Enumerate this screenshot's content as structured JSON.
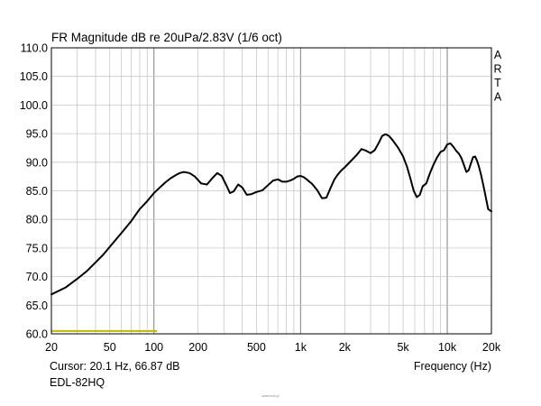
{
  "chart_data": {
    "type": "line",
    "title": "FR Magnitude dB re 20uPa/2.83V (1/6 oct)",
    "xlabel": "Frequency (Hz)",
    "ylabel": "",
    "x_scale": "log",
    "xlim": [
      20,
      20000
    ],
    "ylim": [
      60,
      110
    ],
    "grid": true,
    "colors": {
      "curve": "#000000",
      "marker": "#c8b400",
      "grid": "#c8c8c8"
    },
    "y_ticks": [
      {
        "value": 60,
        "label": "60.0"
      },
      {
        "value": 65,
        "label": "65.0"
      },
      {
        "value": 70,
        "label": "70.0"
      },
      {
        "value": 75,
        "label": "75.0"
      },
      {
        "value": 80,
        "label": "80.0"
      },
      {
        "value": 85,
        "label": "85.0"
      },
      {
        "value": 90,
        "label": "90.0"
      },
      {
        "value": 95,
        "label": "95.0"
      },
      {
        "value": 100,
        "label": "100.0"
      },
      {
        "value": 105,
        "label": "105.0"
      },
      {
        "value": 110,
        "label": "110.0"
      }
    ],
    "x_ticks": [
      {
        "value": 20,
        "label": "20"
      },
      {
        "value": 50,
        "label": "50"
      },
      {
        "value": 100,
        "label": "100"
      },
      {
        "value": 200,
        "label": "200"
      },
      {
        "value": 500,
        "label": "500"
      },
      {
        "value": 1000,
        "label": "1k"
      },
      {
        "value": 2000,
        "label": "2k"
      },
      {
        "value": 5000,
        "label": "5k"
      },
      {
        "value": 10000,
        "label": "10k"
      },
      {
        "value": 20000,
        "label": "20k"
      }
    ],
    "series": [
      {
        "x": [
          20,
          25,
          30,
          35,
          40,
          45,
          50,
          60,
          70,
          80,
          90,
          100,
          110,
          120,
          130,
          140,
          150,
          160,
          175,
          190,
          210,
          230,
          250,
          270,
          290,
          310,
          330,
          350,
          375,
          400,
          430,
          460,
          500,
          550,
          600,
          650,
          700,
          750,
          800,
          850,
          900,
          950,
          1000,
          1050,
          1100,
          1200,
          1300,
          1400,
          1500,
          1600,
          1700,
          1800,
          1900,
          2000,
          2200,
          2400,
          2600,
          2800,
          3000,
          3200,
          3400,
          3600,
          3800,
          4000,
          4200,
          4400,
          4600,
          4800,
          5000,
          5300,
          5600,
          5900,
          6200,
          6500,
          6800,
          7200,
          7600,
          8000,
          8500,
          9000,
          9500,
          10000,
          10500,
          11000,
          11500,
          12000,
          12500,
          13000,
          13500,
          14000,
          14500,
          15000,
          15500,
          16000,
          16500,
          17000,
          17500,
          18000,
          18500,
          19000,
          20000
        ],
        "y": [
          66.9,
          68.1,
          69.6,
          71.0,
          72.5,
          73.8,
          75.2,
          77.6,
          79.7,
          81.8,
          83.2,
          84.6,
          85.6,
          86.5,
          87.2,
          87.7,
          88.1,
          88.3,
          88.1,
          87.5,
          86.3,
          86.1,
          87.2,
          88.1,
          87.6,
          86.1,
          84.6,
          84.9,
          86.1,
          85.6,
          84.3,
          84.4,
          84.8,
          85.1,
          86.0,
          86.8,
          87.0,
          86.6,
          86.6,
          86.8,
          87.1,
          87.5,
          87.6,
          87.4,
          87.0,
          86.2,
          85.1,
          83.7,
          83.8,
          85.5,
          87.0,
          87.9,
          88.6,
          89.1,
          90.2,
          91.2,
          92.3,
          92.0,
          91.6,
          92.1,
          93.3,
          94.6,
          94.9,
          94.6,
          94.0,
          93.3,
          92.6,
          91.8,
          91.0,
          89.3,
          87.2,
          85.0,
          83.9,
          84.3,
          85.8,
          86.3,
          88.0,
          89.4,
          90.8,
          91.8,
          92.1,
          93.1,
          93.3,
          92.7,
          92.0,
          91.5,
          90.7,
          89.5,
          88.3,
          88.6,
          89.8,
          90.9,
          91.0,
          90.2,
          89.1,
          87.8,
          86.3,
          84.8,
          83.3,
          81.8,
          81.4
        ]
      }
    ],
    "marker_segment": {
      "x": [
        20,
        105
      ],
      "y": 60.5
    }
  },
  "arta": [
    "A",
    "R",
    "T",
    "A"
  ],
  "footer": {
    "cursor": "Cursor: 20.1 Hz, 66.87 dB",
    "device": "EDL-82HQ",
    "xlabel": "Frequency (Hz)"
  },
  "watermark": "www.edl.pl"
}
